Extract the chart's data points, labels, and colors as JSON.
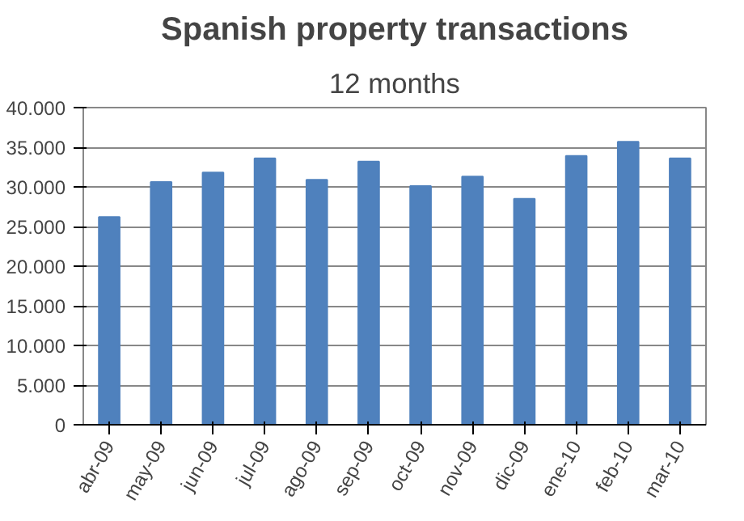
{
  "chart_data": {
    "type": "bar",
    "title": "Spanish property transactions",
    "subtitle": "12 months",
    "categories": [
      "abr-09",
      "may-09",
      "jun-09",
      "jul-09",
      "ago-09",
      "sep-09",
      "oct-09",
      "nov-09",
      "dic-09",
      "ene-10",
      "feb-10",
      "mar-10"
    ],
    "values": [
      26200,
      30600,
      31800,
      33600,
      30900,
      33200,
      30100,
      31300,
      28500,
      33900,
      35700,
      33600
    ],
    "color": "#4f81bd",
    "ylim": [
      0,
      40000
    ],
    "yticks": [
      0,
      {
        "value": 5000,
        "label": "5.000"
      },
      {
        "value": 10000,
        "label": "10.000"
      },
      {
        "value": 15000,
        "label": "15.000"
      },
      {
        "value": 20000,
        "label": "20.000"
      },
      {
        "value": 25000,
        "label": "25.000"
      },
      {
        "value": 30000,
        "label": "30.000"
      },
      {
        "value": 35000,
        "label": "35.000"
      },
      {
        "value": 40000,
        "label": "40.000"
      }
    ],
    "grid": "y"
  }
}
